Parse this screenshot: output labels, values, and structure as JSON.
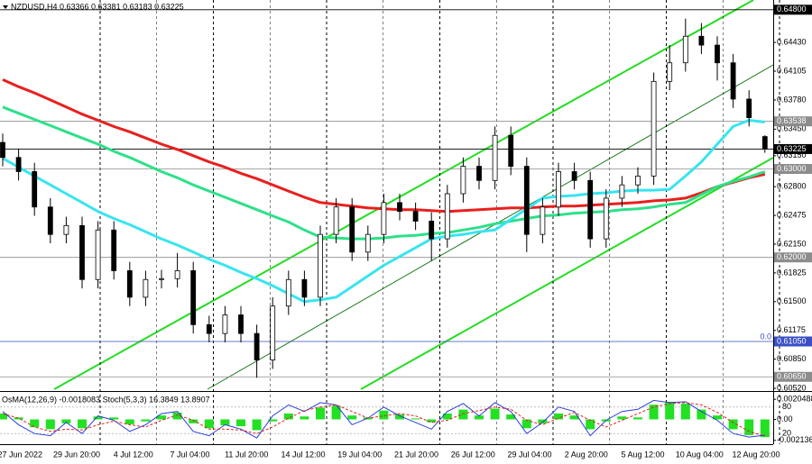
{
  "header": "NZDUSD,H4  0.63366 0.63381 0.63183 0.63225",
  "chart_data": [
    {
      "type": "candlestick",
      "open": [
        0.633,
        0.6313,
        0.6297,
        0.6257,
        0.6226,
        0.6236,
        0.6175,
        0.6231,
        0.6185,
        0.6155,
        0.6175,
        0.6176,
        0.6185,
        0.6124,
        0.6114,
        0.6135,
        0.6114,
        0.6084,
        0.6145,
        0.6175,
        0.6155,
        0.6226,
        0.6257,
        0.6206,
        0.6226,
        0.6262,
        0.6252,
        0.6241,
        0.6221,
        0.6272,
        0.6303,
        0.6287,
        0.6338,
        0.6303,
        0.6226,
        0.6257,
        0.6297,
        0.6287,
        0.6221,
        0.6267,
        0.6282,
        0.6292,
        0.6399,
        0.642,
        0.645,
        0.644,
        0.642,
        0.6379,
        0.63366
      ],
      "high": [
        0.634,
        0.6323,
        0.6307,
        0.6267,
        0.6246,
        0.6246,
        0.6241,
        0.6241,
        0.6195,
        0.6185,
        0.6186,
        0.6205,
        0.6195,
        0.6134,
        0.6145,
        0.6145,
        0.6124,
        0.6155,
        0.6185,
        0.6185,
        0.6236,
        0.6267,
        0.6267,
        0.6236,
        0.6272,
        0.6272,
        0.6262,
        0.6251,
        0.6282,
        0.6313,
        0.6313,
        0.6348,
        0.6348,
        0.6313,
        0.6267,
        0.6307,
        0.6307,
        0.6297,
        0.6277,
        0.6292,
        0.6302,
        0.6409,
        0.644,
        0.647,
        0.6465,
        0.645,
        0.643,
        0.6389,
        0.63381
      ],
      "low": [
        0.6303,
        0.6287,
        0.6247,
        0.6216,
        0.6216,
        0.6165,
        0.6165,
        0.6175,
        0.6145,
        0.6145,
        0.6165,
        0.6166,
        0.6114,
        0.6104,
        0.6104,
        0.6104,
        0.6064,
        0.6074,
        0.6135,
        0.6145,
        0.6145,
        0.6216,
        0.6196,
        0.6196,
        0.6216,
        0.6242,
        0.6231,
        0.6196,
        0.6211,
        0.6262,
        0.6277,
        0.6277,
        0.6293,
        0.6206,
        0.6216,
        0.6247,
        0.6277,
        0.6211,
        0.6211,
        0.6257,
        0.6272,
        0.6282,
        0.6389,
        0.641,
        0.643,
        0.64,
        0.6369,
        0.6348,
        0.63183
      ],
      "close": [
        0.6313,
        0.6297,
        0.6257,
        0.6226,
        0.6236,
        0.6175,
        0.6231,
        0.6185,
        0.6155,
        0.6175,
        0.6176,
        0.6185,
        0.6124,
        0.6114,
        0.6135,
        0.6114,
        0.6084,
        0.6145,
        0.6175,
        0.6155,
        0.6226,
        0.6257,
        0.6206,
        0.6226,
        0.6262,
        0.6252,
        0.6241,
        0.6221,
        0.6272,
        0.6303,
        0.6287,
        0.6338,
        0.6303,
        0.6226,
        0.6257,
        0.6297,
        0.6287,
        0.6221,
        0.6267,
        0.6282,
        0.6292,
        0.6399,
        0.642,
        0.645,
        0.644,
        0.642,
        0.6379,
        0.6358,
        0.63225
      ],
      "lines": [
        {
          "color": "#e8201e",
          "values": [
            0.6401,
            0.6393,
            0.6386,
            0.6378,
            0.637,
            0.6362,
            0.6355,
            0.6348,
            0.6342,
            0.6335,
            0.6328,
            0.6322,
            0.6315,
            0.6308,
            0.6302,
            0.6295,
            0.6289,
            0.6282,
            0.6275,
            0.6268,
            0.6262,
            0.626,
            0.6258,
            0.6256,
            0.6255,
            0.6254,
            0.6254,
            0.6253,
            0.6252,
            0.6253,
            0.6254,
            0.6255,
            0.6256,
            0.6256,
            0.6257,
            0.6258,
            0.6258,
            0.6259,
            0.626,
            0.6261,
            0.6262,
            0.6264,
            0.6265,
            0.6267,
            0.6273,
            0.628,
            0.6285,
            0.629,
            0.6294
          ]
        },
        {
          "color": "#2ee08a",
          "values": [
            0.637,
            0.6363,
            0.6356,
            0.6349,
            0.6342,
            0.6335,
            0.6328,
            0.632,
            0.6313,
            0.6305,
            0.6297,
            0.629,
            0.6282,
            0.6275,
            0.6268,
            0.6261,
            0.6254,
            0.6247,
            0.624,
            0.6231,
            0.6223,
            0.6222,
            0.6221,
            0.6221,
            0.6222,
            0.6224,
            0.6225,
            0.6227,
            0.6228,
            0.6231,
            0.6234,
            0.6238,
            0.6241,
            0.6244,
            0.6247,
            0.6248,
            0.625,
            0.6251,
            0.6252,
            0.6254,
            0.6255,
            0.6257,
            0.626,
            0.6262,
            0.6271,
            0.628,
            0.6286,
            0.6291,
            0.6297
          ]
        },
        {
          "color": "#38e4f0",
          "values": [
            0.6312,
            0.6302,
            0.6292,
            0.6282,
            0.6272,
            0.6262,
            0.6252,
            0.6244,
            0.6237,
            0.6229,
            0.6221,
            0.6214,
            0.6206,
            0.6198,
            0.6191,
            0.6183,
            0.6176,
            0.6168,
            0.6159,
            0.615,
            0.6152,
            0.6155,
            0.6167,
            0.6179,
            0.6191,
            0.6201,
            0.6211,
            0.6221,
            0.6224,
            0.6226,
            0.6229,
            0.6231,
            0.6243,
            0.6255,
            0.6267,
            0.6269,
            0.627,
            0.6272,
            0.6273,
            0.6275,
            0.6276,
            0.6276,
            0.6277,
            0.6292,
            0.6308,
            0.6328,
            0.6348,
            0.6355,
            0.6353
          ]
        }
      ],
      "ylim": [
        0.6051,
        0.6491
      ],
      "yticks": [
        {
          "value": 0.6443,
          "label": "0.64430"
        },
        {
          "value": 0.64105,
          "label": "0.64105"
        },
        {
          "value": 0.6378,
          "label": "0.63780"
        },
        {
          "value": 0.6345,
          "label": "0.63450"
        },
        {
          "value": 0.6315,
          "label": "0.63150"
        },
        {
          "value": 0.628,
          "label": "0.62800"
        },
        {
          "value": 0.62475,
          "label": "0.62475"
        },
        {
          "value": 0.6215,
          "label": "0.62150"
        },
        {
          "value": 0.61825,
          "label": "0.61825"
        },
        {
          "value": 0.615,
          "label": "0.61500"
        },
        {
          "value": 0.61175,
          "label": "0.61175"
        },
        {
          "value": 0.6085,
          "label": "0.60850"
        },
        {
          "value": 0.6052,
          "label": "0.60520"
        }
      ],
      "levels": [
        {
          "value": 0.648,
          "label": "0.64800",
          "color": "#000000"
        },
        {
          "value": 0.63538,
          "label": "0.63538",
          "color": "#8c8c8c"
        },
        {
          "value": 0.63225,
          "label": "0.63225",
          "color": "#000000"
        },
        {
          "value": 0.63,
          "label": "0.63000",
          "color": "#8c8c8c"
        },
        {
          "value": 0.62,
          "label": "0.62000",
          "color": "#8c8c8c"
        },
        {
          "value": 0.6105,
          "label": "0.61050",
          "color": "#3a4fc4"
        },
        {
          "value": 0.6065,
          "label": "0.60650",
          "color": "#8c8c8c"
        }
      ],
      "annotation": "0.0",
      "xlabels": [
        "27 Jun 2022",
        "29 Jun 20:00",
        "4 Jul 12:00",
        "7 Jul 04:00",
        "11 Jul 20:00",
        "14 Jul 12:00",
        "19 Jul 04:00",
        "21 Jul 20:00",
        "26 Jul 12:00",
        "29 Jul 04:00",
        "2 Aug 20:00",
        "5 Aug 12:00",
        "10 Aug 04:00",
        "12 Aug 20:00"
      ]
    },
    {
      "type": "oscillator",
      "title": "OsMA(12,26,9) -0.0018083  Stoch(5,3,3) 16.3849 13.8907",
      "bars": {
        "color": "#22e022",
        "values": [
          0.0006,
          0.0002,
          -0.0008,
          -0.001,
          -0.0004,
          -0.0009,
          0.0003,
          0.0002,
          -0.0005,
          -0.0002,
          0.0004,
          0.0007,
          -0.0004,
          -0.0009,
          -0.0006,
          -0.0007,
          -0.0011,
          -0.0002,
          0.0006,
          0.0003,
          0.0012,
          0.0014,
          0.0004,
          0.0002,
          0.0009,
          0.0005,
          0.0001,
          -0.0003,
          0.0006,
          0.001,
          0.0004,
          0.0011,
          0.0005,
          -0.0009,
          -0.0004,
          0.0006,
          0.0004,
          -0.001,
          -0.0002,
          0.0003,
          0.0002,
          0.0015,
          0.0018,
          0.0016,
          0.001,
          0.0004,
          -0.001,
          -0.0016,
          -0.0018083
        ]
      },
      "ylim": [
        -0.00225,
        0.00225
      ],
      "yticks": [
        0.0020488,
        {
          "value": 0,
          "label": "0.00"
        },
        -0.002136
      ],
      "stoch": {
        "ylim": [
          0,
          100
        ],
        "yticks": [
          80,
          20
        ],
        "main": {
          "color": "#2a3fd8",
          "values": [
            70,
            40,
            20,
            15,
            45,
            20,
            60,
            50,
            25,
            40,
            65,
            70,
            25,
            15,
            40,
            30,
            10,
            60,
            85,
            70,
            90,
            85,
            40,
            55,
            80,
            60,
            45,
            30,
            70,
            88,
            60,
            90,
            70,
            20,
            45,
            80,
            70,
            15,
            50,
            70,
            75,
            95,
            90,
            92,
            70,
            50,
            20,
            12,
            16.3849
          ]
        },
        "signal": {
          "color": "#e02020",
          "values": [
            65,
            55,
            35,
            25,
            30,
            28,
            40,
            48,
            40,
            35,
            50,
            62,
            50,
            30,
            30,
            28,
            20,
            35,
            55,
            72,
            80,
            85,
            70,
            55,
            60,
            65,
            60,
            45,
            50,
            65,
            72,
            80,
            75,
            50,
            40,
            55,
            68,
            50,
            35,
            50,
            65,
            80,
            88,
            90,
            85,
            68,
            45,
            25,
            13.8907
          ]
        }
      }
    }
  ]
}
